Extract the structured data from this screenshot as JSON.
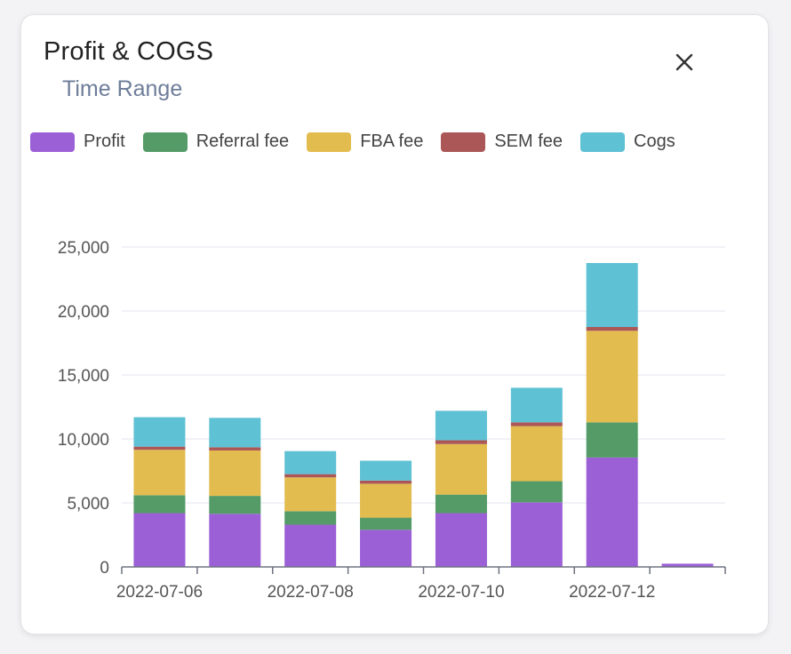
{
  "panel": {
    "title": "Profit & COGS",
    "subtitle": "Time Range",
    "close_icon": "close-icon"
  },
  "colors": {
    "Profit": "#9b5fd6",
    "Referral fee": "#559b68",
    "FBA fee": "#e2bc4e",
    "SEM fee": "#ac5757",
    "Cogs": "#5fc1d4"
  },
  "chart_data": {
    "type": "bar",
    "stacked": true,
    "title": "Profit & COGS",
    "xlabel": "",
    "ylabel": "",
    "ylim": [
      0,
      25000
    ],
    "yticks": [
      0,
      5000,
      10000,
      15000,
      20000,
      25000
    ],
    "ytick_labels": [
      "0",
      "5,000",
      "10,000",
      "15,000",
      "20,000",
      "25,000"
    ],
    "categories": [
      "2022-07-06",
      "2022-07-07",
      "2022-07-08",
      "2022-07-09",
      "2022-07-10",
      "2022-07-11",
      "2022-07-12",
      "2022-07-13"
    ],
    "xtick_labels": [
      {
        "category_index": 0,
        "label": "2022-07-06"
      },
      {
        "category_index": 2,
        "label": "2022-07-08"
      },
      {
        "category_index": 4,
        "label": "2022-07-10"
      },
      {
        "category_index": 6,
        "label": "2022-07-12"
      }
    ],
    "grid": true,
    "legend_position": "top-left",
    "series": [
      {
        "name": "Profit",
        "values": [
          4200,
          4150,
          3300,
          2900,
          4200,
          5050,
          8550,
          250
        ]
      },
      {
        "name": "Referral fee",
        "values": [
          1400,
          1400,
          1050,
          950,
          1450,
          1650,
          2750,
          0
        ]
      },
      {
        "name": "FBA fee",
        "values": [
          3550,
          3550,
          2650,
          2650,
          3950,
          4300,
          7150,
          0
        ]
      },
      {
        "name": "SEM fee",
        "values": [
          250,
          250,
          250,
          250,
          300,
          300,
          300,
          0
        ]
      },
      {
        "name": "Cogs",
        "values": [
          2300,
          2300,
          1800,
          1550,
          2300,
          2700,
          5000,
          0
        ]
      }
    ]
  }
}
